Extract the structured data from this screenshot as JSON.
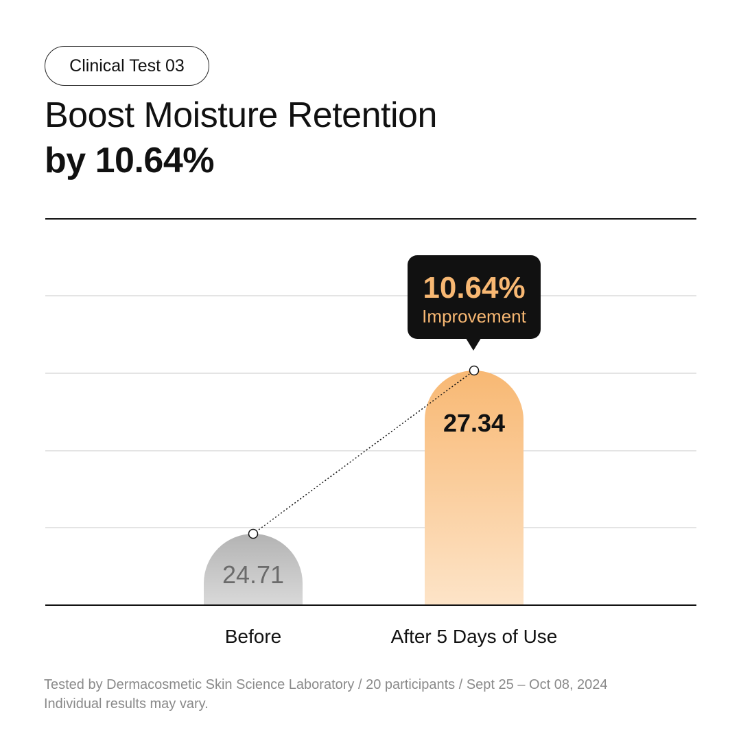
{
  "badge": "Clinical Test 03",
  "title": {
    "line1": "Boost Moisture Retention",
    "line2": "by 10.64%"
  },
  "chart_data": {
    "type": "bar",
    "categories": [
      "Before",
      "After 5 Days of Use"
    ],
    "values": [
      24.71,
      27.34
    ],
    "value_labels": [
      "24.71",
      "27.34"
    ],
    "grid": true,
    "callout": {
      "value": "10.64%",
      "label": "Improvement"
    },
    "colors": {
      "before_top": "#b3b3b3",
      "before_bottom": "#d9d9d9",
      "after_top": "#f8b873",
      "after_bottom": "#fde4c8",
      "callout_bg": "#111111",
      "callout_text": "#f8b873"
    }
  },
  "footnote": {
    "line1": "Tested by Dermacosmetic Skin Science Laboratory / 20 participants / Sept 25 – Oct 08, 2024",
    "line2": "Individual results may vary."
  }
}
